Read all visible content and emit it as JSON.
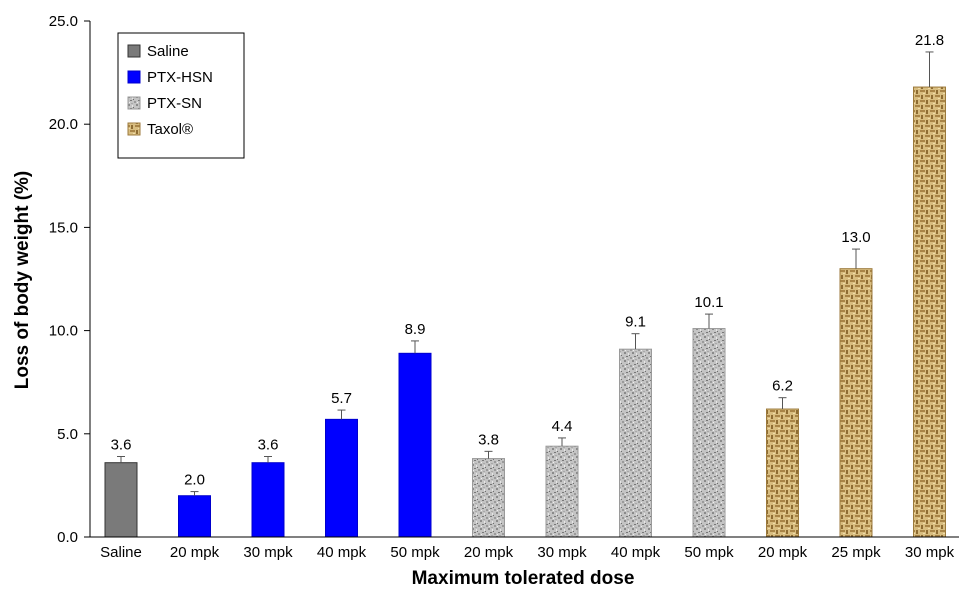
{
  "chart_data": {
    "type": "bar",
    "xlabel": "Maximum tolerated dose",
    "ylabel": "Loss of body weight (%)",
    "ylim": [
      0,
      25
    ],
    "yticks": [
      "0.0",
      "5.0",
      "10.0",
      "15.0",
      "20.0",
      "25.0"
    ],
    "legend_position": "top-left",
    "grid": false,
    "groups": [
      {
        "name": "Saline",
        "color": "#808080",
        "pattern": "solid-gray"
      },
      {
        "name": "PTX-HSN",
        "color": "#0000ff",
        "pattern": "solid-blue"
      },
      {
        "name": "PTX-SN",
        "color": "#b8b8b8",
        "pattern": "gray-speckle"
      },
      {
        "name": "Taxol®",
        "color": "#c9a96a",
        "pattern": "tan-weave"
      }
    ],
    "categories": [
      "Saline",
      "20 mpk",
      "30 mpk",
      "40 mpk",
      "50 mpk",
      "20 mpk",
      "30 mpk",
      "40 mpk",
      "50 mpk",
      "20 mpk",
      "25 mpk",
      "30 mpk"
    ],
    "bar_groups": [
      0,
      1,
      1,
      1,
      1,
      2,
      2,
      2,
      2,
      3,
      3,
      3
    ],
    "values": [
      3.6,
      2.0,
      3.6,
      5.7,
      8.9,
      3.8,
      4.4,
      9.1,
      10.1,
      6.2,
      13.0,
      21.8
    ],
    "value_labels": [
      "3.6",
      "2.0",
      "3.6",
      "5.7",
      "8.9",
      "3.8",
      "4.4",
      "9.1",
      "10.1",
      "6.2",
      "13.0",
      "21.8"
    ],
    "errors": [
      0.3,
      0.2,
      0.3,
      0.45,
      0.6,
      0.35,
      0.4,
      0.75,
      0.7,
      0.55,
      0.95,
      1.7
    ]
  }
}
